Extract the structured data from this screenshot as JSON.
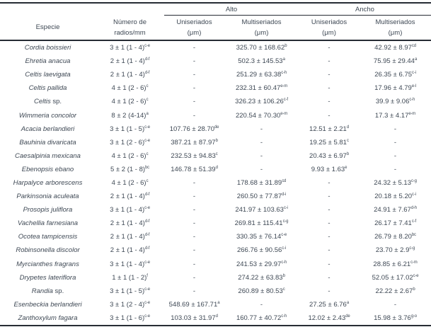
{
  "table": {
    "header": {
      "especie": "Especie",
      "numero": [
        "Número de",
        "radios/mm"
      ],
      "alto": "Alto",
      "ancho": "Ancho",
      "uniseriados": "Uniseriados",
      "multiseriados": "Multiseriados",
      "unit": "(μm)"
    },
    "rows": [
      {
        "species": "Cordia boissieri",
        "species_roman": "",
        "cells": [
          {
            "v": "3 ± 1 (1 - 4)",
            "s": "c-e"
          },
          {
            "v": "-",
            "s": ""
          },
          {
            "v": "325.70 ± 168.62",
            "s": "b"
          },
          {
            "v": "-",
            "s": ""
          },
          {
            "v": "42.92 ± 8.97",
            "s": "cd"
          }
        ]
      },
      {
        "species": "Ehretia anacua",
        "species_roman": "",
        "cells": [
          {
            "v": "2 ± 1 (1 - 4)",
            "s": "d-f"
          },
          {
            "v": "-",
            "s": ""
          },
          {
            "v": "502.3 ± 145.53",
            "s": "a"
          },
          {
            "v": "-",
            "s": ""
          },
          {
            "v": "75.95 ± 29.44",
            "s": "a"
          }
        ]
      },
      {
        "species": "Celtis laevigata",
        "species_roman": "",
        "cells": [
          {
            "v": "2 ± 1 (1 - 4)",
            "s": "d-f"
          },
          {
            "v": "-",
            "s": ""
          },
          {
            "v": "251.29 ± 63.38",
            "s": "c-h"
          },
          {
            "v": "-",
            "s": ""
          },
          {
            "v": "26.35 ± 6.75",
            "s": "c-i"
          }
        ]
      },
      {
        "species": "Celtis pallida",
        "species_roman": "",
        "cells": [
          {
            "v": "4 ± 1 (2 - 6)",
            "s": "c"
          },
          {
            "v": "-",
            "s": ""
          },
          {
            "v": "232.31 ± 60.47",
            "s": "e-m"
          },
          {
            "v": "-",
            "s": ""
          },
          {
            "v": "17.96 ± 4.79",
            "s": "e-l"
          }
        ]
      },
      {
        "species": "Celtis",
        "species_roman": " sp.",
        "cells": [
          {
            "v": "4 ± 1 (2 - 6)",
            "s": "c"
          },
          {
            "v": "-",
            "s": ""
          },
          {
            "v": "326.23 ± 106.26",
            "s": "c-f"
          },
          {
            "v": "-",
            "s": ""
          },
          {
            "v": "39.9 ± 9.06",
            "s": "c-h"
          }
        ]
      },
      {
        "species": "Wimmeria concolor",
        "species_roman": "",
        "cells": [
          {
            "v": "8 ± 2 (4-14)",
            "s": "a"
          },
          {
            "v": "-",
            "s": ""
          },
          {
            "v": "220.54 ± 70.30",
            "s": "e-m"
          },
          {
            "v": "-",
            "s": ""
          },
          {
            "v": "17.3 ± 4.17",
            "s": "e-m"
          }
        ]
      },
      {
        "species": "Acacia berlandieri",
        "species_roman": "",
        "cells": [
          {
            "v": "3 ± 1 (1 - 5)",
            "s": "c-e"
          },
          {
            "v": "107.76 ± 28.70",
            "s": "de"
          },
          {
            "v": "-",
            "s": ""
          },
          {
            "v": "12.51 ± 2.21",
            "s": "d"
          },
          {
            "v": "-",
            "s": ""
          }
        ]
      },
      {
        "species": "Bauhinia divaricata",
        "species_roman": "",
        "cells": [
          {
            "v": "3 ± 1 (2 - 6)",
            "s": "c-e"
          },
          {
            "v": "387.21 ± 87.97",
            "s": "b"
          },
          {
            "v": "-",
            "s": ""
          },
          {
            "v": "19.25 ± 5.81",
            "s": "c"
          },
          {
            "v": "-",
            "s": ""
          }
        ]
      },
      {
        "species": "Caesalpinia mexicana",
        "species_roman": "",
        "cells": [
          {
            "v": "4 ± 1 (2 - 6)",
            "s": "c"
          },
          {
            "v": "232.53 ± 94.83",
            "s": "c"
          },
          {
            "v": "-",
            "s": ""
          },
          {
            "v": "20.43 ± 6.97",
            "s": "b"
          },
          {
            "v": "-",
            "s": ""
          }
        ]
      },
      {
        "species": "Ebenopsis ebano",
        "species_roman": "",
        "cells": [
          {
            "v": "5 ± 2 (1 - 8)",
            "s": "bc"
          },
          {
            "v": "146.78 ± 51.39",
            "s": "d"
          },
          {
            "v": "-",
            "s": ""
          },
          {
            "v": "9.93 ± 1.63",
            "s": "e"
          },
          {
            "v": "-",
            "s": ""
          }
        ]
      },
      {
        "species": "Harpalyce arborescens",
        "species_roman": "",
        "cells": [
          {
            "v": "4 ± 1 (2 - 6)",
            "s": "c"
          },
          {
            "v": "-",
            "s": ""
          },
          {
            "v": "178.68 ± 31.89",
            "s": "cd"
          },
          {
            "v": "-",
            "s": ""
          },
          {
            "v": "24.32 ± 5.13",
            "s": "c-g"
          }
        ]
      },
      {
        "species": "Parkinsonia aculeata",
        "species_roman": "",
        "cells": [
          {
            "v": "2 ± 1 (1 - 4)",
            "s": "d-f"
          },
          {
            "v": "-",
            "s": ""
          },
          {
            "v": "260.50 ± 77.87",
            "s": "d-i"
          },
          {
            "v": "-",
            "s": ""
          },
          {
            "v": "20.18 ± 5.20",
            "s": "c-i"
          }
        ]
      },
      {
        "species": "Prosopis juliflora",
        "species_roman": "",
        "cells": [
          {
            "v": "3 ± 1 (1 - 4)",
            "s": "c-e"
          },
          {
            "v": "-",
            "s": ""
          },
          {
            "v": "241.97 ± 103.63",
            "s": "c-i"
          },
          {
            "v": "-",
            "s": ""
          },
          {
            "v": "24.91 ± 7.67",
            "s": "d-h"
          }
        ]
      },
      {
        "species": "Vachellia farnesiana",
        "species_roman": "",
        "cells": [
          {
            "v": "2 ± 1 (1 - 4)",
            "s": "d-f"
          },
          {
            "v": "-",
            "s": ""
          },
          {
            "v": "269.81 ± 115.41",
            "s": "c-g"
          },
          {
            "v": "-",
            "s": ""
          },
          {
            "v": "26.17 ± 7.41",
            "s": "c-f"
          }
        ]
      },
      {
        "species": "Ocotea tampicensis",
        "species_roman": "",
        "cells": [
          {
            "v": "2 ± 1 (1 - 4)",
            "s": "d-f"
          },
          {
            "v": "-",
            "s": ""
          },
          {
            "v": "330.35 ± 76.14",
            "s": "c-e"
          },
          {
            "v": "-",
            "s": ""
          },
          {
            "v": "26.79 ± 8.20",
            "s": "bc"
          }
        ]
      },
      {
        "species": "Robinsonella discolor",
        "species_roman": "",
        "cells": [
          {
            "v": "2 ± 1 (1 - 4)",
            "s": "d-f"
          },
          {
            "v": "-",
            "s": ""
          },
          {
            "v": "266.76 ± 90.56",
            "s": "c-i"
          },
          {
            "v": "-",
            "s": ""
          },
          {
            "v": "23.70 ± 2.9",
            "s": "c-g"
          }
        ]
      },
      {
        "species": "Myrcianthes fragrans",
        "species_roman": "",
        "cells": [
          {
            "v": "3 ± 1 (1 - 4)",
            "s": "c-e"
          },
          {
            "v": "-",
            "s": ""
          },
          {
            "v": "241.53 ± 29.97",
            "s": "c-h"
          },
          {
            "v": "-",
            "s": ""
          },
          {
            "v": "28.85 ± 6.21",
            "s": "c-m"
          }
        ]
      },
      {
        "species": "Drypetes lateriflora",
        "species_roman": "",
        "cells": [
          {
            "v": "1 ± 1 (1 - 2)",
            "s": "f"
          },
          {
            "v": "-",
            "s": ""
          },
          {
            "v": "274.22 ± 63.83",
            "s": "b"
          },
          {
            "v": "-",
            "s": ""
          },
          {
            "v": "52.05 ± 17.02",
            "s": "c-e"
          }
        ]
      },
      {
        "species": "Randia",
        "species_roman": " sp.",
        "cells": [
          {
            "v": "3 ± 1 (1 - 5)",
            "s": "c-e"
          },
          {
            "v": "-",
            "s": ""
          },
          {
            "v": "260.89 ± 80.53",
            "s": "c"
          },
          {
            "v": "-",
            "s": ""
          },
          {
            "v": "22.22 ± 2.67",
            "s": "b"
          }
        ]
      },
      {
        "species": "Esenbeckia berlandieri",
        "species_roman": "",
        "cells": [
          {
            "v": "3 ± 1 (2 - 4)",
            "s": "c-e"
          },
          {
            "v": "548.69 ± 167.71",
            "s": "a"
          },
          {
            "v": "-",
            "s": ""
          },
          {
            "v": "27.25 ± 6.76",
            "s": "a"
          },
          {
            "v": "-",
            "s": ""
          }
        ]
      },
      {
        "species": "Zanthoxylum fagara",
        "species_roman": "",
        "cells": [
          {
            "v": "3 ± 1 (1 - 6)",
            "s": "c-e"
          },
          {
            "v": "103.03 ± 31.97",
            "s": "d"
          },
          {
            "v": "160.77 ± 40.72",
            "s": "c-h"
          },
          {
            "v": "12.02 ± 2.43",
            "s": "de"
          },
          {
            "v": "15.98 ± 3.76",
            "s": "g-o"
          }
        ]
      }
    ]
  }
}
